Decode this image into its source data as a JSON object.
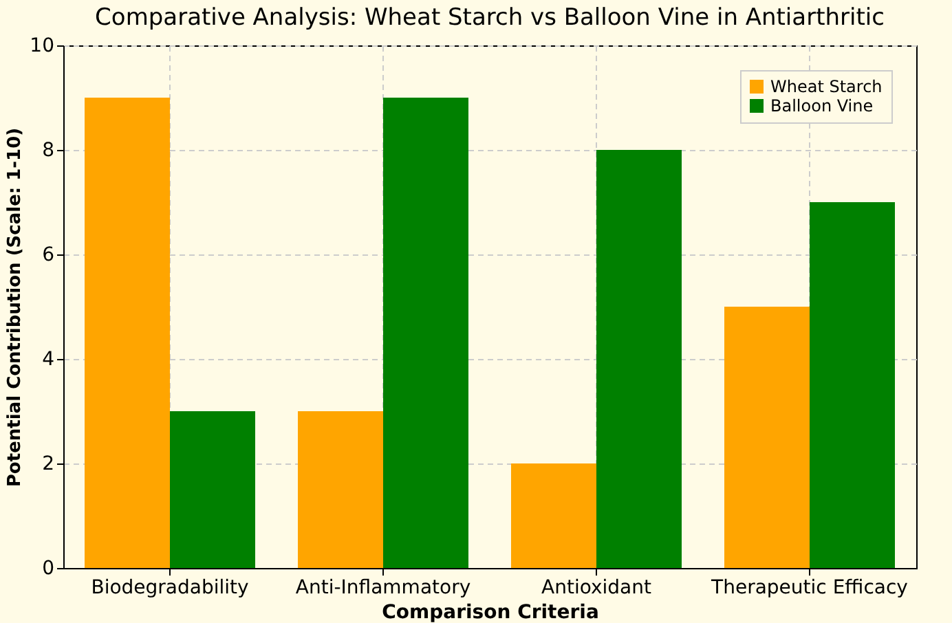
{
  "chart_data": {
    "type": "bar",
    "title": "Comparative Analysis: Wheat Starch vs Balloon Vine in Antiarthritic",
    "xlabel": "Comparison Criteria",
    "ylabel": "Potential Contribution (Scale: 1-10)",
    "categories": [
      "Biodegradability",
      "Anti-Inflammatory",
      "Antioxidant",
      "Therapeutic Efficacy"
    ],
    "series": [
      {
        "name": "Wheat Starch",
        "color": "#ffa500",
        "values": [
          9,
          3,
          2,
          5
        ]
      },
      {
        "name": "Balloon Vine",
        "color": "#008000",
        "values": [
          3,
          9,
          8,
          7
        ]
      }
    ],
    "ylim": [
      0,
      10
    ],
    "yticks": [
      0,
      2,
      4,
      6,
      8,
      10
    ],
    "grid": true,
    "legend": "top right"
  }
}
